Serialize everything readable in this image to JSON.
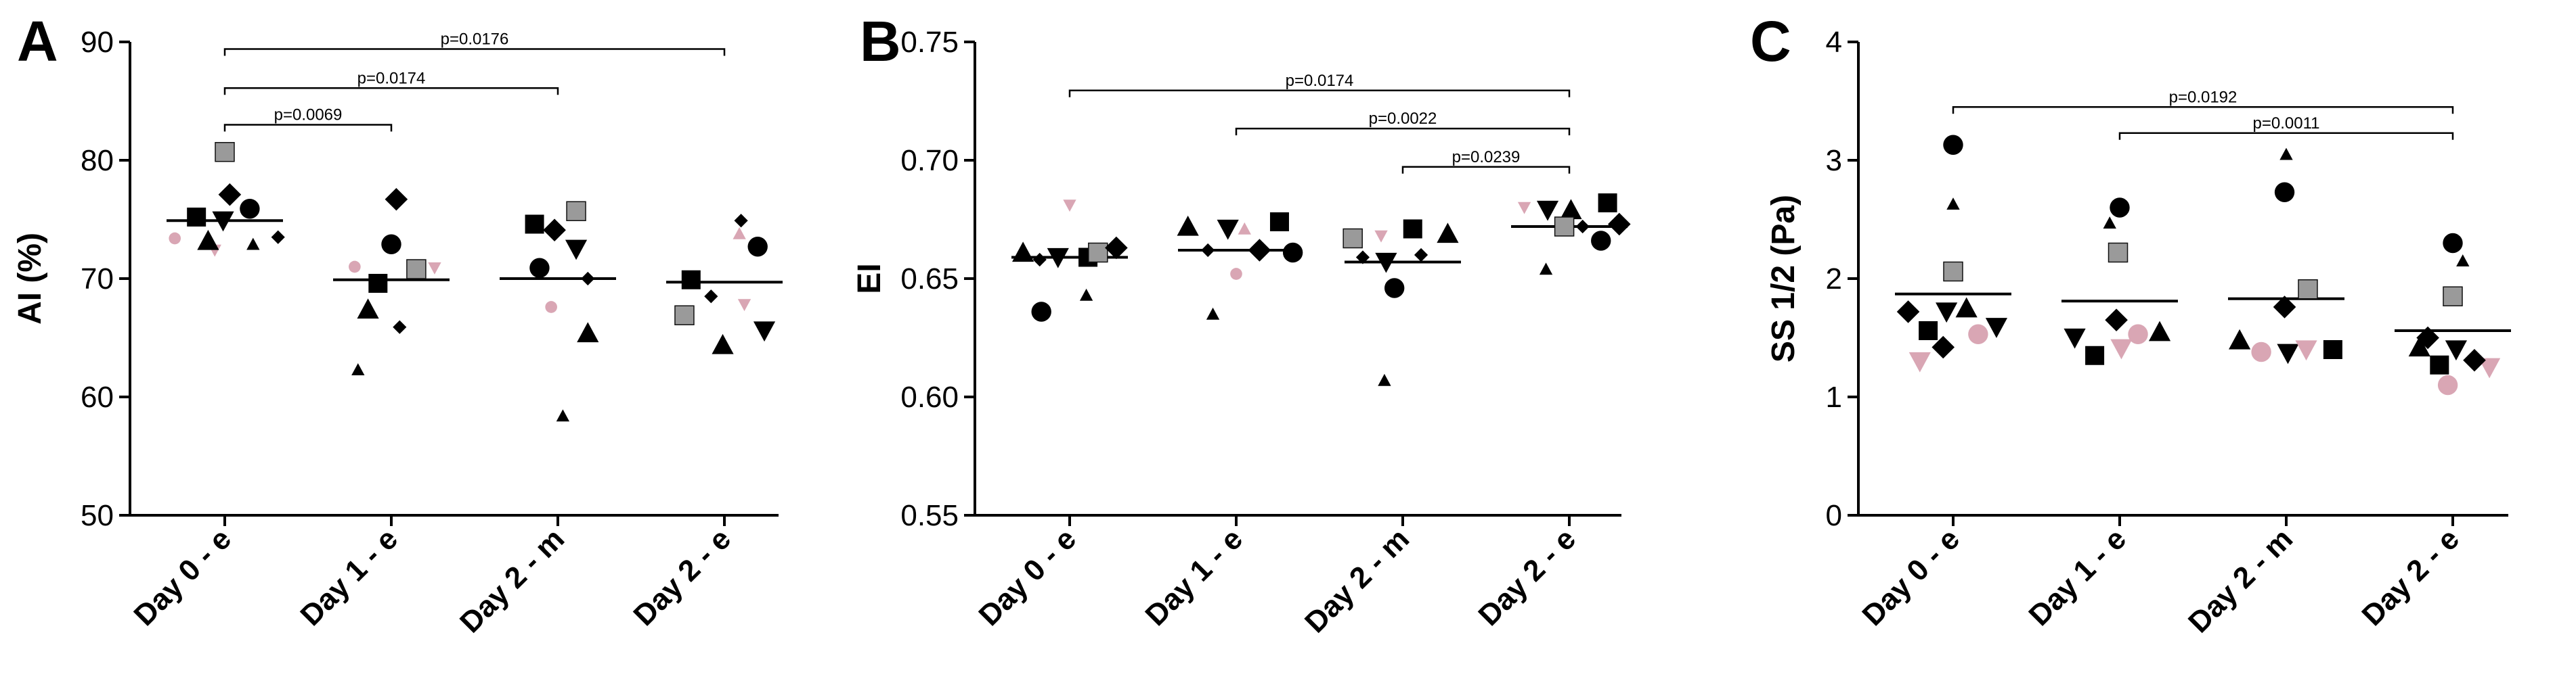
{
  "chart_data": [
    {
      "type": "scatter",
      "panel_label": "A",
      "title": "",
      "xlabel": "",
      "ylabel": "AI (%)",
      "ylim": [
        50,
        90
      ],
      "yticks": [
        "50",
        "60",
        "70",
        "80",
        "90"
      ],
      "categories": [
        "Day 0 - e",
        "Day 1 - e",
        "Day 2 - m",
        "Day 2 - e"
      ],
      "means": [
        74.9,
        69.9,
        70.0,
        69.7
      ],
      "points": [
        {
          "cat": 0,
          "off": -0.3,
          "y": 73.4,
          "m": "circle",
          "c": "pink",
          "s": "s"
        },
        {
          "cat": 0,
          "off": -0.17,
          "y": 75.2,
          "m": "square",
          "c": "black",
          "s": "m"
        },
        {
          "cat": 0,
          "off": -0.06,
          "y": 72.4,
          "m": "tridown",
          "c": "pink",
          "s": "s"
        },
        {
          "cat": 0,
          "off": -0.01,
          "y": 74.9,
          "m": "tridown",
          "c": "black",
          "s": "m"
        },
        {
          "cat": 0,
          "off": 0.0,
          "y": 80.7,
          "m": "square",
          "c": "gray",
          "s": "m"
        },
        {
          "cat": 0,
          "off": 0.03,
          "y": 77.1,
          "m": "diamond",
          "c": "black",
          "s": "m"
        },
        {
          "cat": 0,
          "off": -0.1,
          "y": 73.2,
          "m": "triangle",
          "c": "black",
          "s": "m"
        },
        {
          "cat": 0,
          "off": 0.15,
          "y": 75.9,
          "m": "circle",
          "c": "black",
          "s": "m"
        },
        {
          "cat": 0,
          "off": 0.17,
          "y": 72.9,
          "m": "triangle",
          "c": "black",
          "s": "s"
        },
        {
          "cat": 0,
          "off": 0.32,
          "y": 73.5,
          "m": "diamond",
          "c": "black",
          "s": "s"
        },
        {
          "cat": 1,
          "off": -0.22,
          "y": 71.0,
          "m": "circle",
          "c": "pink",
          "s": "s"
        },
        {
          "cat": 1,
          "off": 0.03,
          "y": 76.7,
          "m": "diamond",
          "c": "black",
          "s": "m"
        },
        {
          "cat": 1,
          "off": 0.0,
          "y": 72.9,
          "m": "circle",
          "c": "black",
          "s": "m"
        },
        {
          "cat": 1,
          "off": -0.08,
          "y": 69.6,
          "m": "square",
          "c": "black",
          "s": "m"
        },
        {
          "cat": 1,
          "off": -0.14,
          "y": 67.4,
          "m": "triangle",
          "c": "black",
          "s": "m"
        },
        {
          "cat": 1,
          "off": 0.15,
          "y": 70.8,
          "m": "square",
          "c": "gray",
          "s": "m"
        },
        {
          "cat": 1,
          "off": 0.26,
          "y": 70.9,
          "m": "tridown",
          "c": "pink",
          "s": "s"
        },
        {
          "cat": 1,
          "off": 0.05,
          "y": 65.9,
          "m": "diamond",
          "c": "black",
          "s": "s"
        },
        {
          "cat": 1,
          "off": -0.2,
          "y": 62.3,
          "m": "triangle",
          "c": "black",
          "s": "s"
        },
        {
          "cat": 2,
          "off": -0.14,
          "y": 74.6,
          "m": "square",
          "c": "black",
          "s": "m"
        },
        {
          "cat": 2,
          "off": -0.02,
          "y": 74.1,
          "m": "diamond",
          "c": "black",
          "s": "m"
        },
        {
          "cat": 2,
          "off": 0.11,
          "y": 75.7,
          "m": "square",
          "c": "gray",
          "s": "m"
        },
        {
          "cat": 2,
          "off": 0.11,
          "y": 72.5,
          "m": "tridown",
          "c": "black",
          "s": "m"
        },
        {
          "cat": 2,
          "off": -0.11,
          "y": 70.9,
          "m": "circle",
          "c": "black",
          "s": "m"
        },
        {
          "cat": 2,
          "off": 0.18,
          "y": 70.0,
          "m": "diamond",
          "c": "black",
          "s": "s"
        },
        {
          "cat": 2,
          "off": -0.04,
          "y": 67.6,
          "m": "circle",
          "c": "pink",
          "s": "s"
        },
        {
          "cat": 2,
          "off": 0.18,
          "y": 65.4,
          "m": "triangle",
          "c": "black",
          "s": "m"
        },
        {
          "cat": 2,
          "off": 0.03,
          "y": 58.4,
          "m": "triangle",
          "c": "black",
          "s": "s"
        },
        {
          "cat": 3,
          "off": 0.1,
          "y": 74.9,
          "m": "diamond",
          "c": "black",
          "s": "s"
        },
        {
          "cat": 3,
          "off": 0.09,
          "y": 73.8,
          "m": "triangle",
          "c": "pink",
          "s": "s"
        },
        {
          "cat": 3,
          "off": 0.2,
          "y": 72.7,
          "m": "circle",
          "c": "black",
          "s": "m"
        },
        {
          "cat": 3,
          "off": -0.2,
          "y": 69.9,
          "m": "square",
          "c": "black",
          "s": "m"
        },
        {
          "cat": 3,
          "off": -0.08,
          "y": 68.5,
          "m": "diamond",
          "c": "black",
          "s": "s"
        },
        {
          "cat": 3,
          "off": 0.12,
          "y": 67.8,
          "m": "tridown",
          "c": "pink",
          "s": "s"
        },
        {
          "cat": 3,
          "off": -0.24,
          "y": 66.9,
          "m": "square",
          "c": "gray",
          "s": "m"
        },
        {
          "cat": 3,
          "off": 0.24,
          "y": 65.6,
          "m": "tridown",
          "c": "black",
          "s": "m"
        },
        {
          "cat": 3,
          "off": -0.01,
          "y": 64.4,
          "m": "triangle",
          "c": "black",
          "s": "m"
        }
      ],
      "comparisons": [
        {
          "from": 0,
          "to": 1,
          "label": "p=0.0069",
          "y": 83.0
        },
        {
          "from": 0,
          "to": 2,
          "label": "p=0.0174",
          "y": 86.1
        },
        {
          "from": 0,
          "to": 3,
          "label": "p=0.0176",
          "y": 89.4
        }
      ]
    },
    {
      "type": "scatter",
      "panel_label": "B",
      "title": "",
      "xlabel": "",
      "ylabel": "EI",
      "ylim": [
        0.55,
        0.75
      ],
      "yticks": [
        "0.55",
        "0.60",
        "0.65",
        "0.70",
        "0.75"
      ],
      "categories": [
        "Day 0 - e",
        "Day 1 - e",
        "Day 2 - m",
        "Day 2 - e"
      ],
      "means": [
        0.659,
        0.662,
        0.657,
        0.672
      ],
      "points": [
        {
          "cat": 0,
          "off": 0.0,
          "y": 0.681,
          "m": "tridown",
          "c": "pink",
          "s": "s"
        },
        {
          "cat": 0,
          "off": -0.28,
          "y": 0.661,
          "m": "triangle",
          "c": "black",
          "s": "m"
        },
        {
          "cat": 0,
          "off": -0.18,
          "y": 0.658,
          "m": "diamond",
          "c": "black",
          "s": "s"
        },
        {
          "cat": 0,
          "off": -0.07,
          "y": 0.659,
          "m": "tridown",
          "c": "black",
          "s": "m"
        },
        {
          "cat": 0,
          "off": 0.11,
          "y": 0.659,
          "m": "square",
          "c": "black",
          "s": "m"
        },
        {
          "cat": 0,
          "off": 0.17,
          "y": 0.661,
          "m": "square",
          "c": "gray",
          "s": "m"
        },
        {
          "cat": 0,
          "off": 0.28,
          "y": 0.663,
          "m": "diamond",
          "c": "black",
          "s": "m"
        },
        {
          "cat": 0,
          "off": 0.1,
          "y": 0.643,
          "m": "triangle",
          "c": "black",
          "s": "s"
        },
        {
          "cat": 0,
          "off": -0.17,
          "y": 0.636,
          "m": "circle",
          "c": "black",
          "s": "m"
        },
        {
          "cat": 1,
          "off": -0.29,
          "y": 0.672,
          "m": "triangle",
          "c": "black",
          "s": "m"
        },
        {
          "cat": 1,
          "off": -0.05,
          "y": 0.671,
          "m": "tridown",
          "c": "black",
          "s": "m"
        },
        {
          "cat": 1,
          "off": 0.05,
          "y": 0.671,
          "m": "triangle",
          "c": "pink",
          "s": "s"
        },
        {
          "cat": 1,
          "off": 0.26,
          "y": 0.674,
          "m": "square",
          "c": "black",
          "s": "m"
        },
        {
          "cat": 1,
          "off": -0.17,
          "y": 0.662,
          "m": "diamond",
          "c": "black",
          "s": "s"
        },
        {
          "cat": 1,
          "off": 0.14,
          "y": 0.662,
          "m": "diamond",
          "c": "black",
          "s": "m"
        },
        {
          "cat": 1,
          "off": 0.34,
          "y": 0.661,
          "m": "circle",
          "c": "black",
          "s": "m"
        },
        {
          "cat": 1,
          "off": 0.0,
          "y": 0.652,
          "m": "circle",
          "c": "pink",
          "s": "s"
        },
        {
          "cat": 1,
          "off": -0.14,
          "y": 0.635,
          "m": "triangle",
          "c": "black",
          "s": "s"
        },
        {
          "cat": 2,
          "off": -0.3,
          "y": 0.667,
          "m": "square",
          "c": "gray",
          "s": "m"
        },
        {
          "cat": 2,
          "off": -0.13,
          "y": 0.668,
          "m": "tridown",
          "c": "pink",
          "s": "s"
        },
        {
          "cat": 2,
          "off": 0.06,
          "y": 0.671,
          "m": "square",
          "c": "black",
          "s": "m"
        },
        {
          "cat": 2,
          "off": 0.27,
          "y": 0.669,
          "m": "triangle",
          "c": "black",
          "s": "m"
        },
        {
          "cat": 2,
          "off": -0.24,
          "y": 0.659,
          "m": "diamond",
          "c": "black",
          "s": "s"
        },
        {
          "cat": 2,
          "off": -0.1,
          "y": 0.657,
          "m": "tridown",
          "c": "black",
          "s": "m"
        },
        {
          "cat": 2,
          "off": 0.11,
          "y": 0.66,
          "m": "diamond",
          "c": "black",
          "s": "s"
        },
        {
          "cat": 2,
          "off": -0.05,
          "y": 0.646,
          "m": "circle",
          "c": "black",
          "s": "m"
        },
        {
          "cat": 2,
          "off": -0.11,
          "y": 0.607,
          "m": "triangle",
          "c": "black",
          "s": "s"
        },
        {
          "cat": 3,
          "off": -0.27,
          "y": 0.68,
          "m": "tridown",
          "c": "pink",
          "s": "s"
        },
        {
          "cat": 3,
          "off": -0.13,
          "y": 0.679,
          "m": "tridown",
          "c": "black",
          "s": "m"
        },
        {
          "cat": 3,
          "off": 0.01,
          "y": 0.679,
          "m": "triangle",
          "c": "black",
          "s": "m"
        },
        {
          "cat": 3,
          "off": 0.23,
          "y": 0.682,
          "m": "square",
          "c": "black",
          "s": "m"
        },
        {
          "cat": 3,
          "off": -0.03,
          "y": 0.672,
          "m": "square",
          "c": "gray",
          "s": "m"
        },
        {
          "cat": 3,
          "off": 0.08,
          "y": 0.672,
          "m": "diamond",
          "c": "black",
          "s": "s"
        },
        {
          "cat": 3,
          "off": 0.3,
          "y": 0.673,
          "m": "diamond",
          "c": "black",
          "s": "m"
        },
        {
          "cat": 3,
          "off": 0.19,
          "y": 0.666,
          "m": "circle",
          "c": "black",
          "s": "m"
        },
        {
          "cat": 3,
          "off": -0.14,
          "y": 0.654,
          "m": "triangle",
          "c": "black",
          "s": "s"
        }
      ],
      "comparisons": [
        {
          "from": 0,
          "to": 3,
          "label": "p=0.0174",
          "y": 0.7295
        },
        {
          "from": 1,
          "to": 3,
          "label": "p=0.0022",
          "y": 0.7134
        },
        {
          "from": 2,
          "to": 3,
          "label": "p=0.0239",
          "y": 0.6972
        }
      ]
    },
    {
      "type": "scatter",
      "panel_label": "C",
      "title": "",
      "xlabel": "",
      "ylabel": "SS 1/2 (Pa)",
      "ylim": [
        0,
        4
      ],
      "yticks": [
        "0",
        "1",
        "2",
        "3",
        "4"
      ],
      "categories": [
        "Day 0 - e",
        "Day 1 - e",
        "Day 2 - m",
        "Day 2 - e"
      ],
      "means": [
        1.87,
        1.81,
        1.83,
        1.56
      ],
      "points": [
        {
          "cat": 0,
          "off": 0.0,
          "y": 3.13,
          "m": "circle",
          "c": "black",
          "s": "m"
        },
        {
          "cat": 0,
          "off": 0.0,
          "y": 2.63,
          "m": "triangle",
          "c": "black",
          "s": "s"
        },
        {
          "cat": 0,
          "off": 0.0,
          "y": 2.06,
          "m": "square",
          "c": "gray",
          "s": "m"
        },
        {
          "cat": 0,
          "off": -0.27,
          "y": 1.72,
          "m": "diamond",
          "c": "black",
          "s": "m"
        },
        {
          "cat": 0,
          "off": -0.04,
          "y": 1.72,
          "m": "tridown",
          "c": "black",
          "s": "m"
        },
        {
          "cat": 0,
          "off": 0.08,
          "y": 1.75,
          "m": "triangle",
          "c": "black",
          "s": "m"
        },
        {
          "cat": 0,
          "off": -0.15,
          "y": 1.56,
          "m": "square",
          "c": "black",
          "s": "m"
        },
        {
          "cat": 0,
          "off": 0.26,
          "y": 1.59,
          "m": "tridown",
          "c": "black",
          "s": "m"
        },
        {
          "cat": 0,
          "off": 0.15,
          "y": 1.53,
          "m": "circle",
          "c": "pink",
          "s": "m"
        },
        {
          "cat": 0,
          "off": -0.06,
          "y": 1.42,
          "m": "diamond",
          "c": "black",
          "s": "m"
        },
        {
          "cat": 0,
          "off": -0.2,
          "y": 1.3,
          "m": "tridown",
          "c": "pink",
          "s": "m"
        },
        {
          "cat": 1,
          "off": 0.0,
          "y": 2.6,
          "m": "circle",
          "c": "black",
          "s": "m"
        },
        {
          "cat": 1,
          "off": -0.06,
          "y": 2.47,
          "m": "triangle",
          "c": "black",
          "s": "s"
        },
        {
          "cat": 1,
          "off": -0.01,
          "y": 2.22,
          "m": "square",
          "c": "gray",
          "s": "m"
        },
        {
          "cat": 1,
          "off": -0.02,
          "y": 1.65,
          "m": "diamond",
          "c": "black",
          "s": "m"
        },
        {
          "cat": 1,
          "off": -0.27,
          "y": 1.5,
          "m": "tridown",
          "c": "black",
          "s": "m"
        },
        {
          "cat": 1,
          "off": 0.11,
          "y": 1.53,
          "m": "circle",
          "c": "pink",
          "s": "m"
        },
        {
          "cat": 1,
          "off": 0.24,
          "y": 1.55,
          "m": "triangle",
          "c": "black",
          "s": "m"
        },
        {
          "cat": 1,
          "off": -0.15,
          "y": 1.35,
          "m": "square",
          "c": "black",
          "s": "m"
        },
        {
          "cat": 1,
          "off": 0.01,
          "y": 1.41,
          "m": "tridown",
          "c": "pink",
          "s": "m"
        },
        {
          "cat": 2,
          "off": 0.0,
          "y": 3.05,
          "m": "triangle",
          "c": "black",
          "s": "s"
        },
        {
          "cat": 2,
          "off": -0.01,
          "y": 2.73,
          "m": "circle",
          "c": "black",
          "s": "m"
        },
        {
          "cat": 2,
          "off": 0.13,
          "y": 1.91,
          "m": "square",
          "c": "gray",
          "s": "m"
        },
        {
          "cat": 2,
          "off": -0.01,
          "y": 1.76,
          "m": "diamond",
          "c": "black",
          "s": "m"
        },
        {
          "cat": 2,
          "off": -0.28,
          "y": 1.48,
          "m": "triangle",
          "c": "black",
          "s": "m"
        },
        {
          "cat": 2,
          "off": -0.15,
          "y": 1.38,
          "m": "circle",
          "c": "pink",
          "s": "m"
        },
        {
          "cat": 2,
          "off": 0.01,
          "y": 1.37,
          "m": "tridown",
          "c": "black",
          "s": "m"
        },
        {
          "cat": 2,
          "off": 0.12,
          "y": 1.4,
          "m": "tridown",
          "c": "pink",
          "s": "m"
        },
        {
          "cat": 2,
          "off": 0.28,
          "y": 1.4,
          "m": "square",
          "c": "black",
          "s": "m"
        },
        {
          "cat": 3,
          "off": 0.0,
          "y": 2.3,
          "m": "circle",
          "c": "black",
          "s": "m"
        },
        {
          "cat": 3,
          "off": 0.06,
          "y": 2.15,
          "m": "triangle",
          "c": "black",
          "s": "s"
        },
        {
          "cat": 3,
          "off": 0.0,
          "y": 1.85,
          "m": "square",
          "c": "gray",
          "s": "m"
        },
        {
          "cat": 3,
          "off": -0.15,
          "y": 1.5,
          "m": "diamond",
          "c": "black",
          "s": "m"
        },
        {
          "cat": 3,
          "off": -0.2,
          "y": 1.42,
          "m": "triangle",
          "c": "black",
          "s": "m"
        },
        {
          "cat": 3,
          "off": 0.02,
          "y": 1.4,
          "m": "tridown",
          "c": "black",
          "s": "m"
        },
        {
          "cat": 3,
          "off": -0.08,
          "y": 1.27,
          "m": "square",
          "c": "black",
          "s": "m"
        },
        {
          "cat": 3,
          "off": 0.22,
          "y": 1.25,
          "m": "tridown",
          "c": "pink",
          "s": "m"
        },
        {
          "cat": 3,
          "off": 0.13,
          "y": 1.31,
          "m": "diamond",
          "c": "black",
          "s": "m"
        },
        {
          "cat": 3,
          "off": -0.03,
          "y": 1.1,
          "m": "circle",
          "c": "pink",
          "s": "m"
        }
      ],
      "comparisons": [
        {
          "from": 0,
          "to": 3,
          "label": "p=0.0192",
          "y": 3.45
        },
        {
          "from": 1,
          "to": 3,
          "label": "p=0.0011",
          "y": 3.23
        }
      ]
    }
  ],
  "colors": {
    "black": "#000000",
    "gray": "#9a9a9a",
    "pink": "#d9a6b4",
    "axis": "#000000"
  }
}
